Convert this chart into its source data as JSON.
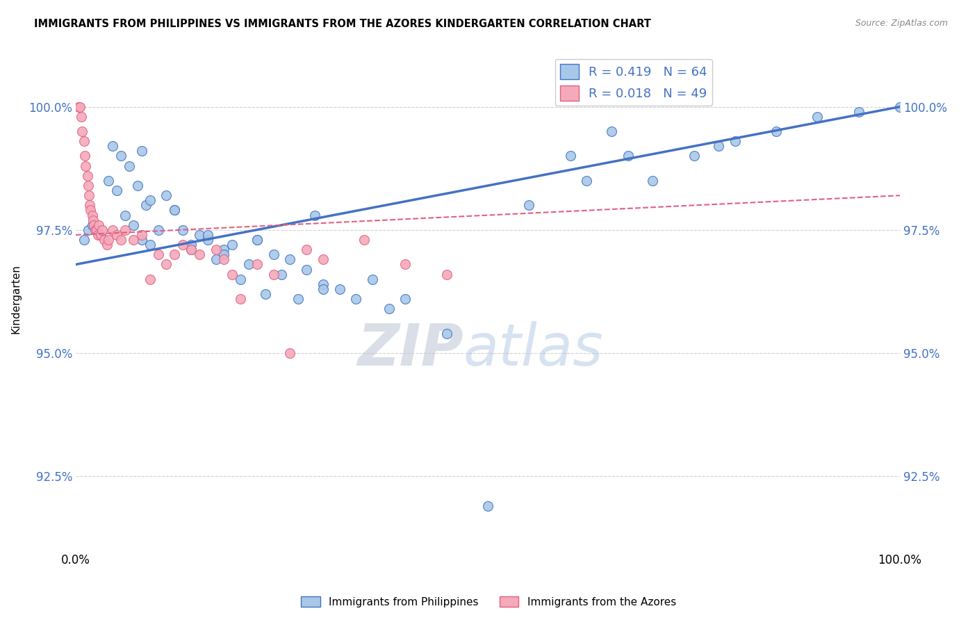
{
  "title": "IMMIGRANTS FROM PHILIPPINES VS IMMIGRANTS FROM THE AZORES KINDERGARTEN CORRELATION CHART",
  "source": "Source: ZipAtlas.com",
  "ylabel": "Kindergarten",
  "xlim": [
    0,
    100
  ],
  "ylim": [
    91.0,
    101.2
  ],
  "yticks": [
    92.5,
    95.0,
    97.5,
    100.0
  ],
  "blue_R": 0.419,
  "blue_N": 64,
  "pink_R": 0.018,
  "pink_N": 49,
  "blue_color": "#A8C8E8",
  "pink_color": "#F4AABB",
  "blue_line_color": "#4472C4",
  "pink_line_color": "#E06080",
  "legend_label_blue": "Immigrants from Philippines",
  "legend_label_pink": "Immigrants from the Azores",
  "watermark_zip": "ZIP",
  "watermark_atlas": "atlas",
  "blue_x": [
    1.0,
    1.5,
    2.0,
    3.0,
    4.0,
    4.5,
    5.0,
    5.5,
    6.0,
    6.5,
    7.0,
    7.5,
    8.0,
    8.5,
    9.0,
    10.0,
    11.0,
    12.0,
    13.0,
    14.0,
    15.0,
    16.0,
    17.0,
    18.0,
    19.0,
    20.0,
    21.0,
    22.0,
    23.0,
    24.0,
    25.0,
    26.0,
    27.0,
    28.0,
    29.0,
    30.0,
    32.0,
    34.0,
    36.0,
    38.0,
    40.0,
    45.0,
    50.0,
    55.0,
    60.0,
    62.0,
    65.0,
    67.0,
    70.0,
    75.0,
    78.0,
    80.0,
    85.0,
    90.0,
    95.0,
    100.0,
    8.0,
    9.0,
    12.0,
    14.0,
    16.0,
    18.0,
    22.0,
    30.0
  ],
  "blue_y": [
    97.3,
    97.5,
    97.6,
    97.4,
    98.5,
    99.2,
    98.3,
    99.0,
    97.8,
    98.8,
    97.6,
    98.4,
    97.3,
    98.0,
    98.1,
    97.5,
    98.2,
    97.9,
    97.5,
    97.2,
    97.4,
    97.3,
    96.9,
    97.1,
    97.2,
    96.5,
    96.8,
    97.3,
    96.2,
    97.0,
    96.6,
    96.9,
    96.1,
    96.7,
    97.8,
    96.4,
    96.3,
    96.1,
    96.5,
    95.9,
    96.1,
    95.4,
    91.9,
    98.0,
    99.0,
    98.5,
    99.5,
    99.0,
    98.5,
    99.0,
    99.2,
    99.3,
    99.5,
    99.8,
    99.9,
    100.0,
    99.1,
    97.2,
    97.9,
    97.1,
    97.4,
    97.0,
    97.3,
    96.3
  ],
  "pink_x": [
    0.3,
    0.5,
    0.7,
    0.8,
    1.0,
    1.1,
    1.2,
    1.4,
    1.5,
    1.6,
    1.7,
    1.8,
    2.0,
    2.1,
    2.2,
    2.4,
    2.5,
    2.7,
    2.8,
    3.0,
    3.2,
    3.5,
    3.8,
    4.0,
    4.5,
    5.0,
    5.5,
    6.0,
    7.0,
    8.0,
    9.0,
    10.0,
    11.0,
    12.0,
    13.0,
    14.0,
    15.0,
    17.0,
    18.0,
    19.0,
    20.0,
    22.0,
    24.0,
    26.0,
    28.0,
    30.0,
    35.0,
    40.0,
    45.0
  ],
  "pink_y": [
    100.0,
    100.0,
    99.8,
    99.5,
    99.3,
    99.0,
    98.8,
    98.6,
    98.4,
    98.2,
    98.0,
    97.9,
    97.8,
    97.7,
    97.6,
    97.5,
    97.5,
    97.4,
    97.6,
    97.4,
    97.5,
    97.3,
    97.2,
    97.3,
    97.5,
    97.4,
    97.3,
    97.5,
    97.3,
    97.4,
    96.5,
    97.0,
    96.8,
    97.0,
    97.2,
    97.1,
    97.0,
    97.1,
    96.9,
    96.6,
    96.1,
    96.8,
    96.6,
    95.0,
    97.1,
    96.9,
    97.3,
    96.8,
    96.6
  ],
  "blue_trend_x0": 0,
  "blue_trend_x1": 100,
  "blue_trend_y0": 96.8,
  "blue_trend_y1": 100.0,
  "pink_trend_x0": 0,
  "pink_trend_x1": 100,
  "pink_trend_y0": 97.4,
  "pink_trend_y1": 98.2
}
